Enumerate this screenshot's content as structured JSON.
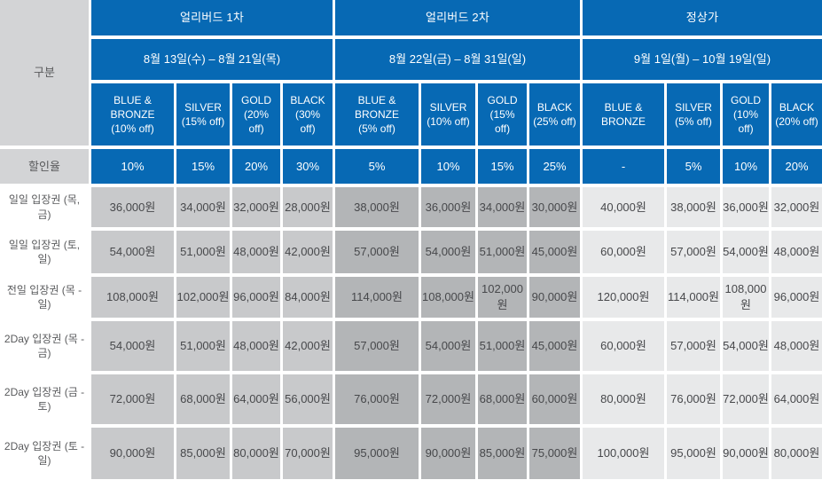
{
  "corner_label": "구분",
  "discount_label": "할인율",
  "colors": {
    "header_blue": "#0769b4",
    "earlybird1_cell_gray": "#c8c9cb",
    "earlybird2_cell_gray": "#b3b5b7",
    "regular_cell_gray": "#e8e9ea",
    "label_cell_gray": "#d3d4d6",
    "header_text": "#ffffff",
    "price_text": "#47484b"
  },
  "groups": [
    {
      "title": "얼리버드 1차",
      "dates": "8월 13일(수) – 8월 21일(목)",
      "tiers": [
        {
          "name": "BLUE & BRONZE",
          "off": "(10% off)"
        },
        {
          "name": "SILVER",
          "off": "(15% off)"
        },
        {
          "name": "GOLD",
          "off": "(20% off)"
        },
        {
          "name": "BLACK",
          "off": "(30% off)"
        }
      ],
      "discounts": [
        "10%",
        "15%",
        "20%",
        "30%"
      ]
    },
    {
      "title": "얼리버드 2차",
      "dates": "8월 22일(금) – 8월 31일(일)",
      "tiers": [
        {
          "name": "BLUE & BRONZE",
          "off": "(5% off)"
        },
        {
          "name": "SILVER",
          "off": "(10% off)"
        },
        {
          "name": "GOLD",
          "off": "(15% off)"
        },
        {
          "name": "BLACK",
          "off": "(25% off)"
        }
      ],
      "discounts": [
        "5%",
        "10%",
        "15%",
        "25%"
      ]
    },
    {
      "title": "정상가",
      "dates": "9월 1일(월) – 10월 19일(일)",
      "tiers": [
        {
          "name": "BLUE & BRONZE",
          "off": ""
        },
        {
          "name": "SILVER",
          "off": "(5% off)"
        },
        {
          "name": "GOLD",
          "off": "(10% off)"
        },
        {
          "name": "BLACK",
          "off": "(20% off)"
        }
      ],
      "discounts": [
        "-",
        "5%",
        "10%",
        "20%"
      ]
    }
  ],
  "rows": [
    {
      "label": "일일 입장권 (목, 금)",
      "prices": [
        "36,000원",
        "34,000원",
        "32,000원",
        "28,000원",
        "38,000원",
        "36,000원",
        "34,000원",
        "30,000원",
        "40,000원",
        "38,000원",
        "36,000원",
        "32,000원"
      ]
    },
    {
      "label": "일일 입장권 (토, 일)",
      "prices": [
        "54,000원",
        "51,000원",
        "48,000원",
        "42,000원",
        "57,000원",
        "54,000원",
        "51,000원",
        "45,000원",
        "60,000원",
        "57,000원",
        "54,000원",
        "48,000원"
      ]
    },
    {
      "label": "전일 입장권 (목 - 일)",
      "prices": [
        "108,000원",
        "102,000원",
        "96,000원",
        "84,000원",
        "114,000원",
        "108,000원",
        "102,000원",
        "90,000원",
        "120,000원",
        "114,000원",
        "108,000원",
        "96,000원"
      ]
    },
    {
      "label": "2Day 입장권 (목 - 금)",
      "prices": [
        "54,000원",
        "51,000원",
        "48,000원",
        "42,000원",
        "57,000원",
        "54,000원",
        "51,000원",
        "45,000원",
        "60,000원",
        "57,000원",
        "54,000원",
        "48,000원"
      ]
    },
    {
      "label": "2Day 입장권 (금 - 토)",
      "prices": [
        "72,000원",
        "68,000원",
        "64,000원",
        "56,000원",
        "76,000원",
        "72,000원",
        "68,000원",
        "60,000원",
        "80,000원",
        "76,000원",
        "72,000원",
        "64,000원"
      ]
    },
    {
      "label": "2Day 입장권 (토 - 일)",
      "prices": [
        "90,000원",
        "85,000원",
        "80,000원",
        "70,000원",
        "95,000원",
        "90,000원",
        "85,000원",
        "75,000원",
        "100,000원",
        "95,000원",
        "90,000원",
        "80,000원"
      ]
    }
  ]
}
